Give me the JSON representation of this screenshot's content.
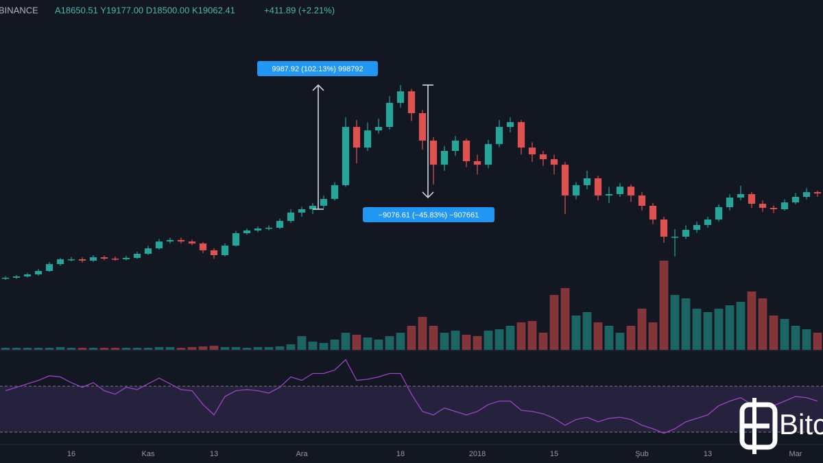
{
  "header": {
    "exchange": "BINANCE",
    "ohlc": "A18650.51 Y19177.00 D18500.00 K19062.41",
    "change": "+411.89 (+2.21%)"
  },
  "watermark": "Bitc",
  "chart_data": {
    "type": "candlestick",
    "categories": [
      null,
      null,
      null,
      null,
      null,
      null,
      "16",
      null,
      null,
      null,
      null,
      null,
      null,
      "Kas",
      null,
      null,
      null,
      null,
      null,
      "13",
      null,
      null,
      null,
      null,
      null,
      null,
      null,
      "Ara",
      null,
      null,
      null,
      null,
      null,
      null,
      null,
      null,
      "18",
      null,
      null,
      null,
      null,
      null,
      null,
      "2018",
      null,
      null,
      null,
      null,
      null,
      null,
      "15",
      null,
      null,
      null,
      null,
      null,
      null,
      null,
      "Şub",
      null,
      null,
      null,
      null,
      null,
      "13",
      null,
      null,
      null,
      null,
      null,
      null,
      null,
      "Mar",
      null,
      null
    ],
    "open": [
      4200,
      4280,
      4390,
      4550,
      4830,
      5380,
      5770,
      5770,
      5660,
      5930,
      5820,
      5770,
      5880,
      6210,
      6650,
      7200,
      7320,
      7200,
      7040,
      6490,
      6100,
      6870,
      7870,
      8090,
      8250,
      8310,
      8860,
      9530,
      9800,
      10080,
      10630,
      11740,
      16430,
      14770,
      16150,
      16430,
      18370,
      19300,
      17540,
      15330,
      13390,
      14500,
      15330,
      13670,
      13390,
      15050,
      16430,
      16820,
      14770,
      14220,
      13830,
      13390,
      10910,
      11740,
      12290,
      10910,
      11020,
      11620,
      10910,
      10080,
      8970,
      7590,
      7590,
      8140,
      8530,
      8970,
      9970,
      10740,
      11020,
      10240,
      9910,
      9800,
      10350,
      10800,
      11180
    ],
    "high": [
      4400,
      4500,
      4680,
      4970,
      5550,
      5900,
      5950,
      5920,
      6100,
      6080,
      5990,
      6050,
      6380,
      6850,
      7400,
      7500,
      7500,
      7350,
      7150,
      6650,
      7050,
      8050,
      8250,
      8400,
      8500,
      9050,
      9800,
      10000,
      10300,
      10900,
      12000,
      17200,
      17000,
      16800,
      17100,
      18900,
      19800,
      19500,
      17800,
      15600,
      14900,
      15700,
      15500,
      14200,
      15400,
      17000,
      17200,
      17000,
      15200,
      14500,
      14200,
      13600,
      12000,
      12900,
      12500,
      11600,
      11900,
      11800,
      11200,
      10300,
      9200,
      8200,
      8500,
      8800,
      9200,
      10200,
      11000,
      11700,
      11200,
      10500,
      10100,
      10600,
      11100,
      11500,
      11300
    ],
    "low": [
      4100,
      4200,
      4300,
      4450,
      4750,
      5250,
      5600,
      5500,
      5550,
      5700,
      5650,
      5680,
      5800,
      6120,
      6550,
      7050,
      7050,
      6900,
      6250,
      5800,
      6000,
      6800,
      7750,
      7950,
      8100,
      8200,
      8700,
      9200,
      9400,
      9900,
      10500,
      11600,
      13500,
      14500,
      15900,
      16200,
      18000,
      16900,
      14600,
      11800,
      12900,
      14100,
      13200,
      12600,
      13100,
      14800,
      16000,
      14200,
      13600,
      13300,
      12600,
      9400,
      10600,
      11400,
      10500,
      10300,
      10800,
      10400,
      9700,
      8600,
      7100,
      6000,
      7400,
      7900,
      8300,
      8800,
      9700,
      10500,
      9900,
      9600,
      9500,
      9700,
      10200,
      10600,
      10800
    ],
    "close": [
      4280,
      4390,
      4550,
      4830,
      5380,
      5770,
      5770,
      5660,
      5930,
      5820,
      5770,
      5880,
      6210,
      6650,
      7200,
      7320,
      7200,
      7040,
      6490,
      6100,
      6870,
      7870,
      8090,
      8250,
      8310,
      8860,
      9530,
      9800,
      10080,
      10630,
      11740,
      16430,
      14770,
      16150,
      16430,
      18370,
      19300,
      17540,
      15330,
      13390,
      14500,
      15330,
      13670,
      13390,
      15050,
      16430,
      16820,
      14770,
      14220,
      13830,
      13390,
      10910,
      11740,
      12290,
      10910,
      11020,
      11620,
      10910,
      10080,
      8970,
      7590,
      7590,
      8140,
      8530,
      8970,
      9970,
      10740,
      11020,
      10240,
      9910,
      9800,
      10350,
      10800,
      11180,
      11070
    ],
    "ylim": [
      4000,
      25000
    ],
    "up_color": "#26a69a",
    "down_color": "#e0524f",
    "volume": {
      "values": [
        3,
        3,
        3,
        3,
        3,
        4,
        3,
        3,
        3,
        3,
        3,
        3,
        3,
        3,
        4,
        4,
        3,
        4,
        5,
        6,
        4,
        4,
        3,
        4,
        4,
        5,
        8,
        20,
        12,
        10,
        15,
        25,
        22,
        18,
        15,
        20,
        25,
        35,
        48,
        35,
        25,
        28,
        22,
        20,
        28,
        30,
        35,
        40,
        42,
        25,
        80,
        90,
        50,
        55,
        40,
        35,
        25,
        35,
        60,
        40,
        130,
        80,
        75,
        60,
        55,
        60,
        65,
        70,
        85,
        75,
        50,
        45,
        35,
        30,
        25
      ],
      "ylim": [
        0,
        140
      ]
    },
    "rsi": {
      "values": [
        66,
        69,
        72,
        75,
        79,
        78,
        73,
        69,
        73,
        66,
        63,
        69,
        67,
        72,
        77,
        72,
        67,
        66,
        54,
        45,
        61,
        66,
        67,
        66,
        64,
        69,
        78,
        75,
        81,
        81,
        84,
        93,
        75,
        76,
        78,
        81,
        81,
        63,
        48,
        45,
        51,
        48,
        45,
        48,
        54,
        57,
        57,
        49,
        48,
        46,
        42,
        36,
        41,
        43,
        39,
        42,
        43,
        41,
        36,
        33,
        29,
        33,
        39,
        42,
        45,
        53,
        57,
        60,
        54,
        52,
        53,
        57,
        61,
        60,
        57
      ],
      "ylim": [
        5,
        95
      ],
      "levels": [
        70,
        30
      ],
      "color": "#9c45c8"
    },
    "annotations": [
      "9987.92 (102.13%) 998792",
      "−9076.61 (−45.83%) −907661"
    ]
  }
}
